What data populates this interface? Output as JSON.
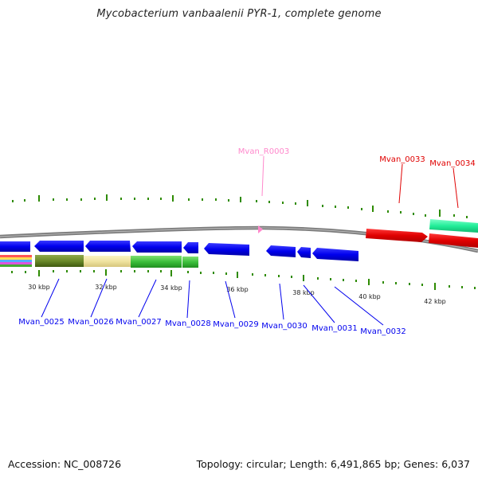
{
  "title": "Mycobacterium vanbaalenii PYR-1, complete genome",
  "footer": {
    "accession": "Accession: NC_008726",
    "stats": "Topology: circular; Length: 6,491,865 bp; Genes: 6,037"
  },
  "colors": {
    "forward_gene": "#e00000",
    "reverse_gene": "#0000ee",
    "rna": "#ff88cc",
    "tick_green": "#2e8b00",
    "backbone": "#808080"
  },
  "ruler_labels": [
    "30 kbp",
    "32 kbp",
    "34 kbp",
    "36 kbp",
    "38 kbp",
    "40 kbp",
    "42 kbp"
  ],
  "gene_labels": {
    "top": [
      "Mvan_R0003",
      "Mvan_0033",
      "Mvan_0034"
    ],
    "bottom": [
      "Mvan_0025",
      "Mvan_0026",
      "Mvan_0027",
      "Mvan_0028",
      "Mvan_0029",
      "Mvan_0030",
      "Mvan_0031",
      "Mvan_0032"
    ]
  }
}
